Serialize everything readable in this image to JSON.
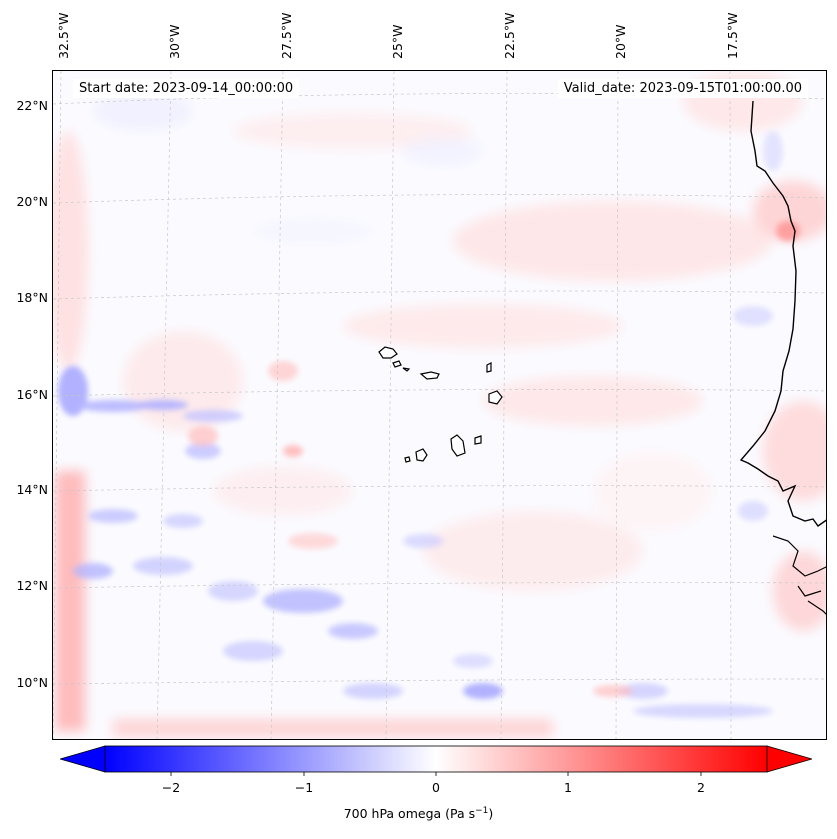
{
  "map": {
    "start_date": "Start date: 2023-09-14_00:00:00",
    "valid_date": "Valid_date: 2023-09-15T01:00:00.00",
    "lon_labels": [
      "32.5°W",
      "30°W",
      "27.5°W",
      "25°W",
      "22.5°W",
      "20°W",
      "17.5°W"
    ],
    "lat_labels": [
      "22°N",
      "20°N",
      "18°N",
      "16°N",
      "14°N",
      "12°N",
      "10°N"
    ],
    "region": "Cape Verde / West Africa coast",
    "colors": {
      "negative": "#0000ff",
      "neutral": "#ffffff",
      "positive": "#ff0000",
      "coast": "#000000"
    }
  },
  "colorbar": {
    "ticks": [
      "−2",
      "−1",
      "0",
      "1",
      "2"
    ],
    "tick_values": [
      -2,
      -1,
      0,
      1,
      2
    ],
    "range": [
      -2.5,
      2.5
    ],
    "label_text": "700 hPa omega (Pa s",
    "label_exp": "−1",
    "label_close": ")"
  }
}
